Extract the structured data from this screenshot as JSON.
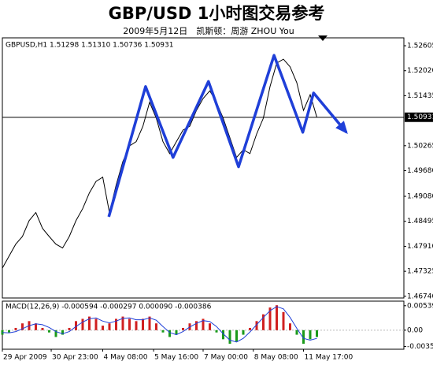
{
  "title": "GBP/USD 1小时图交易参考",
  "subtitle": "2009年5月12日　凯斯顿：周游 ZHOU You",
  "chart_data": [
    {
      "type": "line",
      "label": "GBPUSD,H1  1.51298 1.51310 1.50736 1.50931",
      "xlim": [
        0,
        60
      ],
      "ylim": [
        1.467,
        1.5279
      ],
      "yticks": [
        1.52605,
        {
          "value": 1.5202,
          "label": "1.52020"
        },
        1.51435,
        1.50265,
        {
          "value": 1.4968,
          "label": "1.49680"
        },
        {
          "value": 1.4908,
          "label": "1.49080"
        },
        1.48495,
        {
          "value": 1.4791,
          "label": "1.47910"
        },
        1.47325,
        {
          "value": 1.4674,
          "label": "1.46740"
        }
      ],
      "current_price": 1.50931,
      "series": [
        {
          "color": "#000000",
          "values": [
            1.474,
            1.4768,
            1.4796,
            1.4814,
            1.4851,
            1.487,
            1.4833,
            1.4814,
            1.4796,
            1.4787,
            1.4814,
            1.4851,
            1.4879,
            1.4916,
            1.4943,
            1.4953,
            1.487,
            1.4934,
            1.4989,
            1.5026,
            1.5036,
            1.5072,
            1.5128,
            1.5091,
            1.5036,
            1.5008,
            1.5036,
            1.5063,
            1.5072,
            1.5109,
            1.5137,
            1.5155,
            1.5128,
            1.5091,
            1.5045,
            1.4999,
            1.5017,
            1.5008,
            1.5054,
            1.5091,
            1.5165,
            1.522,
            1.5229,
            1.5211,
            1.5174,
            1.5109,
            1.5146,
            1.5093
          ]
        }
      ],
      "annotations": [
        {
          "color": "#1f3fd8",
          "x": [
            15.9,
            21.4,
            25.5,
            30.8,
            35.3,
            40.6,
            44.9,
            46.5,
            51.4
          ],
          "values": [
            1.486,
            1.5165,
            1.4999,
            1.5177,
            1.4977,
            1.5238,
            1.5058,
            1.515,
            1.5058
          ]
        }
      ]
    },
    {
      "type": "bar",
      "label": "MACD(12,26,9) -0.000594 -0.000297 0.000090 -0.000386",
      "xlim": [
        0,
        60
      ],
      "ylim": [
        -0.0042,
        0.0064
      ],
      "yticks": [
        0.00539,
        {
          "value": 0,
          "label": "0.00"
        },
        -0.00358
      ],
      "xticks": [
        {
          "value": 0,
          "label": "29 Apr 2009"
        },
        {
          "value": 7.3,
          "label": "30 Apr 23:00"
        },
        {
          "value": 15,
          "label": "4 May 08:00"
        },
        {
          "value": 22.6,
          "label": "5 May 16:00"
        },
        {
          "value": 30,
          "label": "7 May 00:00"
        },
        {
          "value": 37.5,
          "label": "8 May 08:00"
        },
        {
          "value": 45,
          "label": "11 May 17:00"
        }
      ],
      "colors": {
        "positive": "#d02020",
        "negative": "#1a9a1a"
      },
      "values": [
        -0.001,
        -0.0005,
        0.0005,
        0.0015,
        0.002,
        0.0015,
        0.0005,
        -0.0005,
        -0.0015,
        -0.001,
        0.0005,
        0.002,
        0.0025,
        0.003,
        0.0025,
        0.001,
        0.0015,
        0.0025,
        0.003,
        0.0025,
        0.002,
        0.0025,
        0.003,
        0.0015,
        -0.0005,
        -0.0015,
        -0.001,
        0.0005,
        0.0015,
        0.002,
        0.0025,
        0.0015,
        -0.0005,
        -0.002,
        -0.003,
        -0.0025,
        -0.001,
        0.0005,
        0.002,
        0.0035,
        0.005,
        0.0055,
        0.004,
        0.0015,
        -0.001,
        -0.003,
        -0.002,
        -0.0015
      ],
      "signal": {
        "color": "#1f3fd8",
        "values": [
          -0.0005,
          -0.0006,
          -0.0003,
          0.0003,
          0.001,
          0.0014,
          0.0012,
          0.0006,
          -0.0003,
          -0.0008,
          -0.0003,
          0.0008,
          0.0018,
          0.0025,
          0.0027,
          0.002,
          0.0016,
          0.002,
          0.0026,
          0.0027,
          0.0023,
          0.0023,
          0.0027,
          0.0022,
          0.0008,
          -0.0005,
          -0.001,
          -0.0003,
          0.0007,
          0.0015,
          0.0021,
          0.0019,
          0.0008,
          -0.0008,
          -0.0022,
          -0.0026,
          -0.0018,
          -0.0004,
          0.0012,
          0.0028,
          0.0043,
          0.0052,
          0.0047,
          0.0028,
          0.0004,
          -0.0018,
          -0.0022,
          -0.0018
        ]
      }
    }
  ]
}
